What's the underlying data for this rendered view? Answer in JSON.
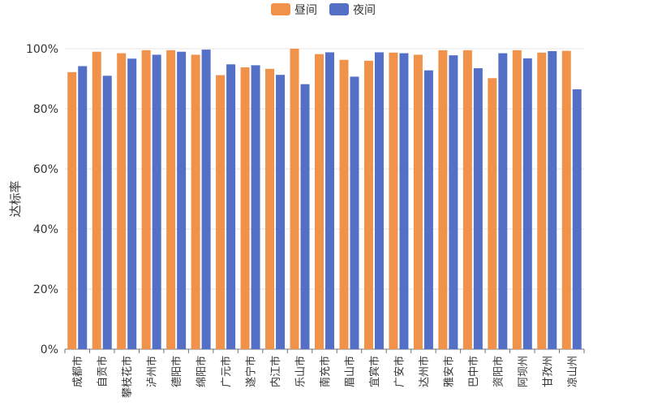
{
  "chart_data": {
    "type": "bar",
    "title": "",
    "xlabel": "",
    "ylabel": "达标率",
    "ylim": [
      0,
      1
    ],
    "yticks": [
      "0%",
      "20%",
      "40%",
      "60%",
      "80%",
      "100%"
    ],
    "grid": true,
    "legend_position": "top-center",
    "categories": [
      "成都市",
      "自贡市",
      "攀枝花市",
      "泸州市",
      "德阳市",
      "绵阳市",
      "广元市",
      "遂宁市",
      "内江市",
      "乐山市",
      "南充市",
      "眉山市",
      "宜宾市",
      "广安市",
      "达州市",
      "雅安市",
      "巴中市",
      "资阳市",
      "阿坝州",
      "甘孜州",
      "凉山州"
    ],
    "series": [
      {
        "name": "昼间",
        "color": "#f0924a",
        "values": [
          0.922,
          0.99,
          0.985,
          0.995,
          0.995,
          0.98,
          0.912,
          0.938,
          0.933,
          1.0,
          0.982,
          0.963,
          0.96,
          0.987,
          0.98,
          0.995,
          0.995,
          0.902,
          0.995,
          0.987,
          0.993
        ]
      },
      {
        "name": "夜间",
        "color": "#5470c6",
        "values": [
          0.942,
          0.91,
          0.967,
          0.98,
          0.99,
          0.997,
          0.948,
          0.945,
          0.913,
          0.882,
          0.988,
          0.907,
          0.988,
          0.985,
          0.928,
          0.978,
          0.935,
          0.985,
          0.968,
          0.992,
          0.865
        ]
      }
    ]
  }
}
